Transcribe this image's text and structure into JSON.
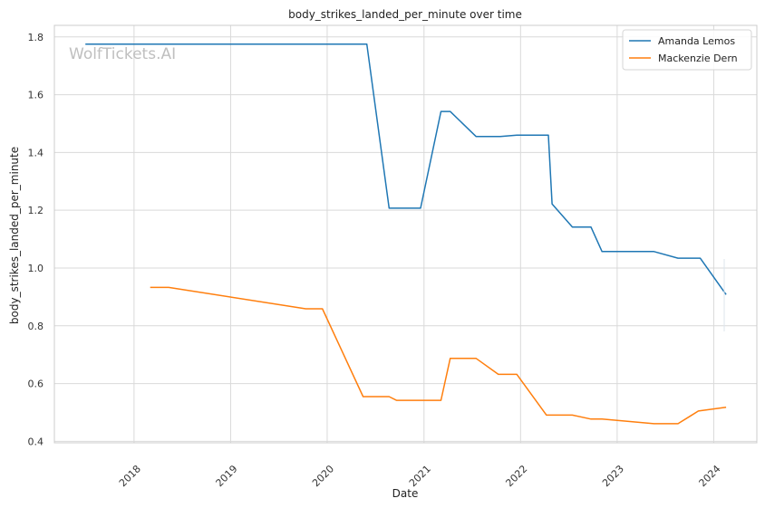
{
  "chart_data": {
    "type": "line",
    "title": "body_strikes_landed_per_minute over time",
    "xlabel": "Date",
    "ylabel": "body_strikes_landed_per_minute",
    "watermark": "WolfTickets.AI",
    "x_axis_type": "date",
    "xlim": [
      "2017-03-06",
      "2024-06-12"
    ],
    "ylim": [
      0.395,
      1.84
    ],
    "x_ticks": [
      "2018",
      "2019",
      "2020",
      "2021",
      "2022",
      "2023",
      "2024"
    ],
    "y_ticks": [
      "0.4",
      "0.6",
      "0.8",
      "1.0",
      "1.2",
      "1.4",
      "1.6",
      "1.8"
    ],
    "grid": true,
    "legend_position": "top-right",
    "series": [
      {
        "name": "Amanda Lemos",
        "color": "#1f77b4",
        "points": [
          {
            "x": "2017-07-01",
            "y": 1.775
          },
          {
            "x": "2020-05-30",
            "y": 1.775
          },
          {
            "x": "2020-08-22",
            "y": 1.207
          },
          {
            "x": "2020-12-19",
            "y": 1.207
          },
          {
            "x": "2021-03-06",
            "y": 1.542
          },
          {
            "x": "2021-04-10",
            "y": 1.542
          },
          {
            "x": "2021-07-17",
            "y": 1.455
          },
          {
            "x": "2021-10-16",
            "y": 1.455
          },
          {
            "x": "2021-12-18",
            "y": 1.46
          },
          {
            "x": "2022-04-16",
            "y": 1.46
          },
          {
            "x": "2022-04-30",
            "y": 1.222
          },
          {
            "x": "2022-07-16",
            "y": 1.142
          },
          {
            "x": "2022-09-24",
            "y": 1.142
          },
          {
            "x": "2022-11-05",
            "y": 1.057
          },
          {
            "x": "2023-05-20",
            "y": 1.057
          },
          {
            "x": "2023-08-19",
            "y": 1.034
          },
          {
            "x": "2023-11-11",
            "y": 1.034
          },
          {
            "x": "2024-02-17",
            "y": 0.908
          }
        ]
      },
      {
        "name": "Mackenzie Dern",
        "color": "#ff7f0e",
        "points": [
          {
            "x": "2018-03-03",
            "y": 0.933
          },
          {
            "x": "2018-05-12",
            "y": 0.933
          },
          {
            "x": "2019-10-12",
            "y": 0.859
          },
          {
            "x": "2019-12-14",
            "y": 0.859
          },
          {
            "x": "2020-05-16",
            "y": 0.555
          },
          {
            "x": "2020-08-22",
            "y": 0.555
          },
          {
            "x": "2020-09-19",
            "y": 0.542
          },
          {
            "x": "2021-03-06",
            "y": 0.542
          },
          {
            "x": "2021-04-10",
            "y": 0.687
          },
          {
            "x": "2021-07-17",
            "y": 0.687
          },
          {
            "x": "2021-10-09",
            "y": 0.632
          },
          {
            "x": "2021-12-18",
            "y": 0.632
          },
          {
            "x": "2022-04-09",
            "y": 0.491
          },
          {
            "x": "2022-07-16",
            "y": 0.491
          },
          {
            "x": "2022-09-24",
            "y": 0.477
          },
          {
            "x": "2022-11-05",
            "y": 0.477
          },
          {
            "x": "2023-05-20",
            "y": 0.461
          },
          {
            "x": "2023-08-19",
            "y": 0.461
          },
          {
            "x": "2023-11-04",
            "y": 0.505
          },
          {
            "x": "2024-02-17",
            "y": 0.518
          }
        ]
      }
    ]
  }
}
